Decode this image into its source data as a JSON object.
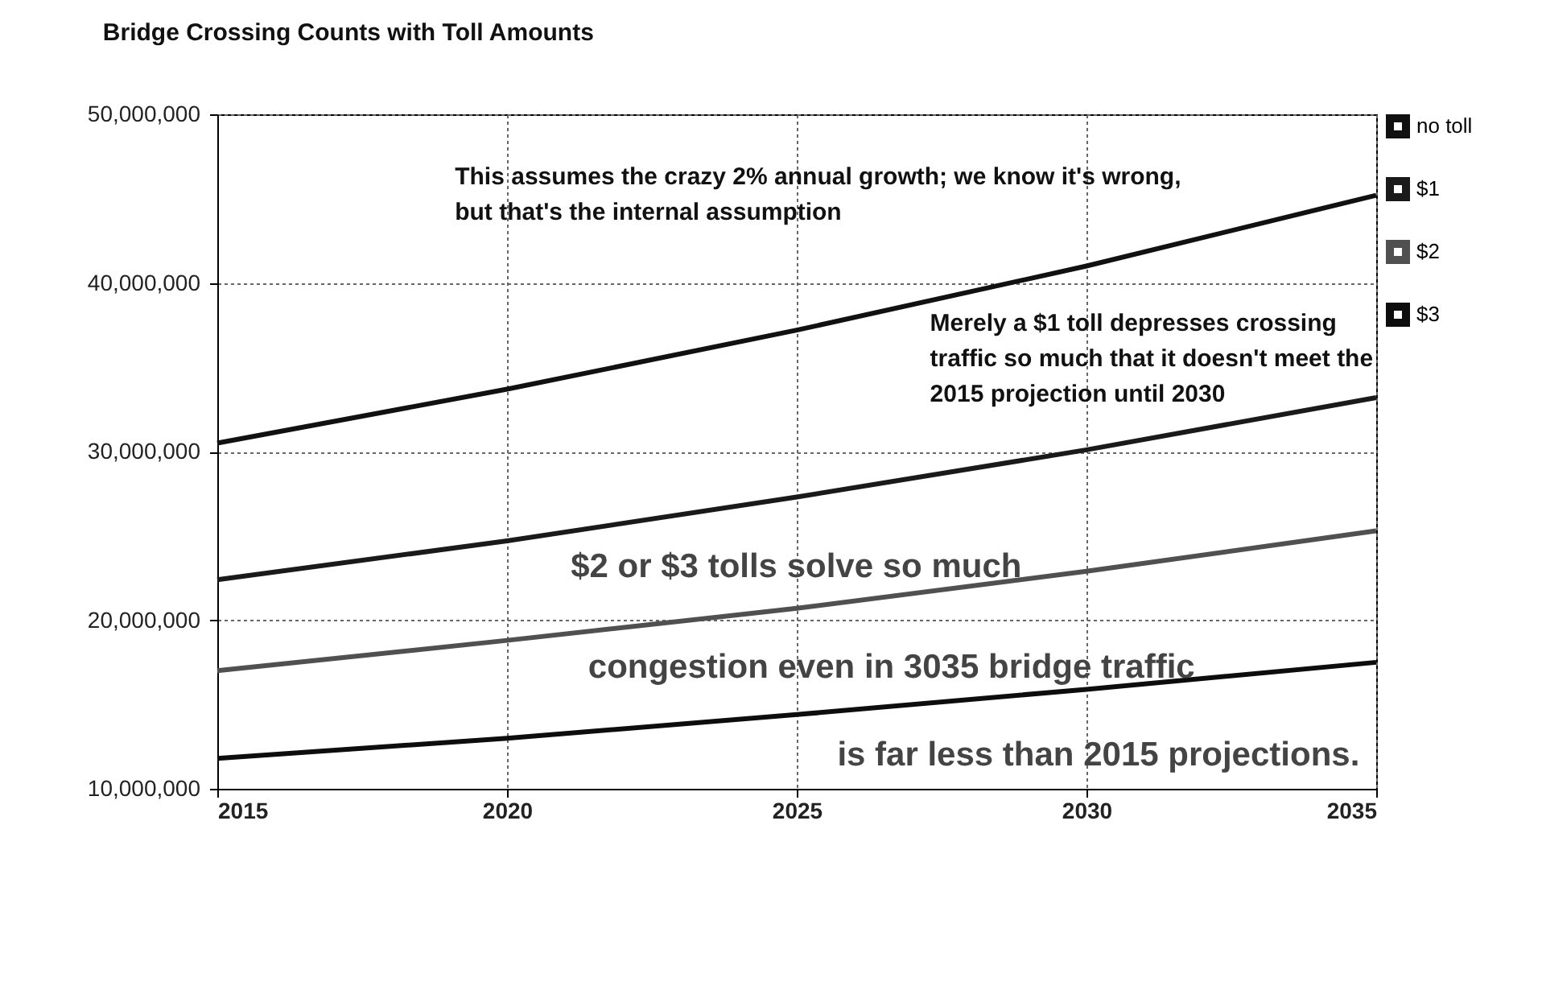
{
  "chart_data": {
    "type": "line",
    "title": "Bridge Crossing Counts with Toll Amounts",
    "x": [
      2015,
      2020,
      2025,
      2030,
      2035
    ],
    "series": [
      {
        "name": "no toll",
        "color": "#111111",
        "values": [
          30500000,
          33700000,
          37200000,
          41000000,
          45200000
        ]
      },
      {
        "name": "$1",
        "color": "#1a1a1a",
        "values": [
          22400000,
          24700000,
          27300000,
          30100000,
          33200000
        ]
      },
      {
        "name": "$2",
        "color": "#505050",
        "values": [
          17000000,
          18800000,
          20700000,
          22900000,
          25300000
        ]
      },
      {
        "name": "$3",
        "color": "#0d0d0d",
        "values": [
          11800000,
          13000000,
          14400000,
          15900000,
          17500000
        ]
      }
    ],
    "xlim": [
      2015,
      2035
    ],
    "xticks": [
      2015,
      2020,
      2025,
      2030,
      2035
    ],
    "ylim": [
      10000000,
      50000000
    ],
    "yticks": [
      {
        "value": 10000000,
        "label": "10,000,000"
      },
      {
        "value": 20000000,
        "label": "20,000,000"
      },
      {
        "value": 30000000,
        "label": "30,000,000"
      },
      {
        "value": 40000000,
        "label": "40,000,000"
      },
      {
        "value": 50000000,
        "label": "50,000,000"
      }
    ],
    "grid": true,
    "legend": "top right",
    "marker": "none",
    "line_style": "solid",
    "annotations": [
      "This assumes the crazy 2% annual growth; we know it's wrong,\nbut that's the internal assumption",
      "Merely a $1 toll depresses crossing\ntraffic so much that it doesn't meet the\n2015 projection until 2030",
      "$2 or $3 tolls solve so much",
      "congestion even in 3035 bridge traffic",
      "is far less than 2015 projections."
    ]
  }
}
